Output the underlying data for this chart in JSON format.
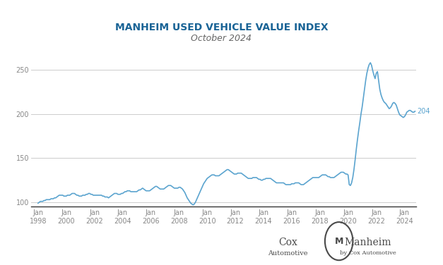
{
  "title": "MANHEIM USED VEHICLE VALUE INDEX",
  "subtitle": "October 2024",
  "title_color": "#1a6496",
  "subtitle_color": "#666666",
  "line_color": "#5ba4cf",
  "background_color": "#ffffff",
  "plot_bg_color": "#ffffff",
  "grid_color": "#cccccc",
  "axis_label_color": "#888888",
  "ylim": [
    95,
    275
  ],
  "yticks": [
    100,
    150,
    200,
    250
  ],
  "ylabel_visible": false,
  "end_label_value": "~204",
  "end_label_color": "#5ba4cf",
  "years_x": [
    1998,
    2000,
    2002,
    2004,
    2006,
    2008,
    2010,
    2012,
    2014,
    2016,
    2018,
    2020,
    2022,
    2024
  ],
  "data": {
    "dates": [
      1998.0,
      1998.083,
      1998.167,
      1998.25,
      1998.333,
      1998.417,
      1998.5,
      1998.583,
      1998.667,
      1998.75,
      1998.833,
      1998.917,
      1999.0,
      1999.083,
      1999.167,
      1999.25,
      1999.333,
      1999.417,
      1999.5,
      1999.583,
      1999.667,
      1999.75,
      1999.833,
      1999.917,
      2000.0,
      2000.083,
      2000.167,
      2000.25,
      2000.333,
      2000.417,
      2000.5,
      2000.583,
      2000.667,
      2000.75,
      2000.833,
      2000.917,
      2001.0,
      2001.083,
      2001.167,
      2001.25,
      2001.333,
      2001.417,
      2001.5,
      2001.583,
      2001.667,
      2001.75,
      2001.833,
      2001.917,
      2002.0,
      2002.083,
      2002.167,
      2002.25,
      2002.333,
      2002.417,
      2002.5,
      2002.583,
      2002.667,
      2002.75,
      2002.833,
      2002.917,
      2003.0,
      2003.083,
      2003.167,
      2003.25,
      2003.333,
      2003.417,
      2003.5,
      2003.583,
      2003.667,
      2003.75,
      2003.833,
      2003.917,
      2004.0,
      2004.083,
      2004.167,
      2004.25,
      2004.333,
      2004.417,
      2004.5,
      2004.583,
      2004.667,
      2004.75,
      2004.833,
      2004.917,
      2005.0,
      2005.083,
      2005.167,
      2005.25,
      2005.333,
      2005.417,
      2005.5,
      2005.583,
      2005.667,
      2005.75,
      2005.833,
      2005.917,
      2006.0,
      2006.083,
      2006.167,
      2006.25,
      2006.333,
      2006.417,
      2006.5,
      2006.583,
      2006.667,
      2006.75,
      2006.833,
      2006.917,
      2007.0,
      2007.083,
      2007.167,
      2007.25,
      2007.333,
      2007.417,
      2007.5,
      2007.583,
      2007.667,
      2007.75,
      2007.833,
      2007.917,
      2008.0,
      2008.083,
      2008.167,
      2008.25,
      2008.333,
      2008.417,
      2008.5,
      2008.583,
      2008.667,
      2008.75,
      2008.833,
      2008.917,
      2009.0,
      2009.083,
      2009.167,
      2009.25,
      2009.333,
      2009.417,
      2009.5,
      2009.583,
      2009.667,
      2009.75,
      2009.833,
      2009.917,
      2010.0,
      2010.083,
      2010.167,
      2010.25,
      2010.333,
      2010.417,
      2010.5,
      2010.583,
      2010.667,
      2010.75,
      2010.833,
      2010.917,
      2011.0,
      2011.083,
      2011.167,
      2011.25,
      2011.333,
      2011.417,
      2011.5,
      2011.583,
      2011.667,
      2011.75,
      2011.833,
      2011.917,
      2012.0,
      2012.083,
      2012.167,
      2012.25,
      2012.333,
      2012.417,
      2012.5,
      2012.583,
      2012.667,
      2012.75,
      2012.833,
      2012.917,
      2013.0,
      2013.083,
      2013.167,
      2013.25,
      2013.333,
      2013.417,
      2013.5,
      2013.583,
      2013.667,
      2013.75,
      2013.833,
      2013.917,
      2014.0,
      2014.083,
      2014.167,
      2014.25,
      2014.333,
      2014.417,
      2014.5,
      2014.583,
      2014.667,
      2014.75,
      2014.833,
      2014.917,
      2015.0,
      2015.083,
      2015.167,
      2015.25,
      2015.333,
      2015.417,
      2015.5,
      2015.583,
      2015.667,
      2015.75,
      2015.833,
      2015.917,
      2016.0,
      2016.083,
      2016.167,
      2016.25,
      2016.333,
      2016.417,
      2016.5,
      2016.583,
      2016.667,
      2016.75,
      2016.833,
      2016.917,
      2017.0,
      2017.083,
      2017.167,
      2017.25,
      2017.333,
      2017.417,
      2017.5,
      2017.583,
      2017.667,
      2017.75,
      2017.833,
      2017.917,
      2018.0,
      2018.083,
      2018.167,
      2018.25,
      2018.333,
      2018.417,
      2018.5,
      2018.583,
      2018.667,
      2018.75,
      2018.833,
      2018.917,
      2019.0,
      2019.083,
      2019.167,
      2019.25,
      2019.333,
      2019.417,
      2019.5,
      2019.583,
      2019.667,
      2019.75,
      2019.833,
      2019.917,
      2020.0,
      2020.083,
      2020.167,
      2020.25,
      2020.333,
      2020.417,
      2020.5,
      2020.583,
      2020.667,
      2020.75,
      2020.833,
      2020.917,
      2021.0,
      2021.083,
      2021.167,
      2021.25,
      2021.333,
      2021.417,
      2021.5,
      2021.583,
      2021.667,
      2021.75,
      2021.833,
      2021.917,
      2022.0,
      2022.083,
      2022.167,
      2022.25,
      2022.333,
      2022.417,
      2022.5,
      2022.583,
      2022.667,
      2022.75,
      2022.833,
      2022.917,
      2023.0,
      2023.083,
      2023.167,
      2023.25,
      2023.333,
      2023.417,
      2023.5,
      2023.583,
      2023.667,
      2023.75,
      2023.833,
      2023.917,
      2024.0,
      2024.083,
      2024.167,
      2024.25,
      2024.333,
      2024.417,
      2024.5,
      2024.583,
      2024.667,
      2024.75
    ],
    "values": [
      99,
      100,
      101,
      101,
      101,
      102,
      102,
      103,
      103,
      103,
      103,
      104,
      104,
      104,
      105,
      105,
      106,
      107,
      108,
      108,
      108,
      108,
      107,
      107,
      107,
      108,
      108,
      108,
      109,
      110,
      110,
      110,
      109,
      108,
      108,
      107,
      107,
      107,
      108,
      108,
      108,
      109,
      109,
      110,
      110,
      109,
      109,
      108,
      108,
      108,
      108,
      108,
      108,
      108,
      108,
      107,
      107,
      106,
      106,
      106,
      105,
      106,
      107,
      108,
      109,
      110,
      110,
      110,
      109,
      109,
      109,
      110,
      110,
      111,
      112,
      112,
      113,
      113,
      113,
      112,
      112,
      112,
      112,
      112,
      112,
      113,
      114,
      114,
      115,
      116,
      115,
      114,
      113,
      113,
      113,
      113,
      114,
      115,
      116,
      117,
      118,
      118,
      117,
      116,
      115,
      115,
      115,
      115,
      116,
      117,
      118,
      119,
      119,
      119,
      118,
      117,
      116,
      116,
      116,
      116,
      117,
      117,
      116,
      115,
      113,
      111,
      108,
      105,
      103,
      101,
      99,
      98,
      97,
      98,
      100,
      103,
      106,
      109,
      112,
      115,
      118,
      121,
      123,
      125,
      127,
      128,
      129,
      130,
      131,
      131,
      131,
      130,
      130,
      130,
      130,
      131,
      132,
      133,
      134,
      135,
      136,
      137,
      137,
      136,
      135,
      134,
      133,
      132,
      132,
      132,
      133,
      133,
      133,
      133,
      132,
      131,
      130,
      129,
      128,
      127,
      127,
      127,
      127,
      128,
      128,
      128,
      128,
      127,
      126,
      126,
      125,
      125,
      126,
      126,
      127,
      127,
      127,
      127,
      127,
      126,
      125,
      124,
      123,
      122,
      122,
      122,
      122,
      122,
      122,
      122,
      121,
      120,
      120,
      120,
      120,
      120,
      121,
      121,
      121,
      122,
      122,
      122,
      122,
      121,
      120,
      120,
      120,
      121,
      122,
      123,
      124,
      125,
      126,
      127,
      128,
      128,
      128,
      128,
      128,
      128,
      129,
      130,
      131,
      131,
      131,
      131,
      130,
      129,
      129,
      128,
      128,
      128,
      128,
      129,
      130,
      131,
      132,
      133,
      134,
      134,
      134,
      133,
      132,
      132,
      131,
      120,
      119,
      122,
      128,
      137,
      148,
      160,
      171,
      181,
      190,
      200,
      208,
      218,
      228,
      238,
      246,
      252,
      256,
      258,
      255,
      249,
      244,
      240,
      246,
      248,
      238,
      228,
      222,
      218,
      215,
      213,
      212,
      210,
      208,
      206,
      207,
      209,
      212,
      213,
      212,
      210,
      206,
      202,
      199,
      198,
      197,
      196,
      197,
      199,
      202,
      203,
      204,
      204,
      203,
      202,
      202,
      203
    ]
  },
  "logo_area_color": "#f0f0f0",
  "footer_text_cox": "Cox\nAutomotive",
  "footer_text_manheim": "Manheim\nby Cox Automotive"
}
